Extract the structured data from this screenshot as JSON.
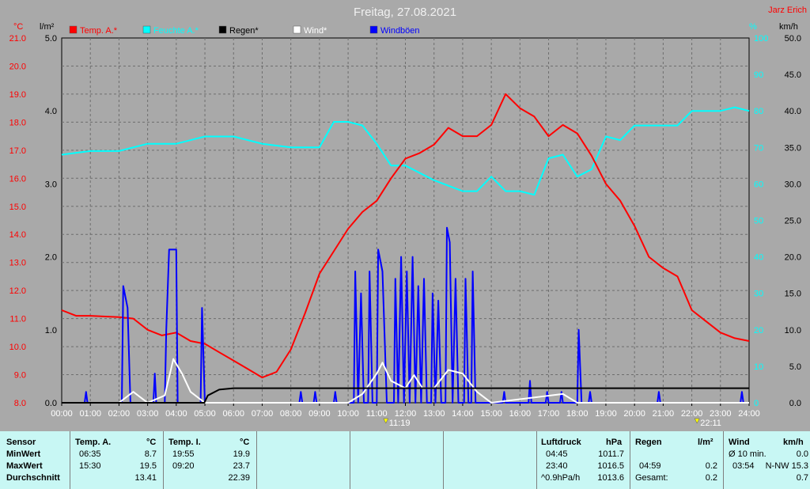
{
  "title": "Freitag, 27.08.2021",
  "author": "Jarz Erich",
  "axes": {
    "left_temp": {
      "unit": "°C",
      "ticks": [
        "21.0",
        "20.0",
        "19.0",
        "18.0",
        "17.0",
        "16.0",
        "15.0",
        "14.0",
        "13.0",
        "12.0",
        "11.0",
        "10.0",
        "9.0",
        "8.0"
      ],
      "range": [
        8,
        21
      ]
    },
    "left_rain": {
      "unit": "l/m²",
      "ticks": [
        "5.0",
        "4.0",
        "3.0",
        "2.0",
        "1.0",
        "0.0"
      ],
      "range": [
        0,
        5
      ]
    },
    "right_humidity": {
      "unit": "%",
      "ticks": [
        "100",
        "90",
        "80",
        "70",
        "60",
        "50",
        "40",
        "30",
        "20",
        "10",
        "0"
      ],
      "range": [
        0,
        100
      ]
    },
    "right_wind": {
      "unit": "km/h",
      "ticks": [
        "50.0",
        "45.0",
        "40.0",
        "35.0",
        "30.0",
        "25.0",
        "20.0",
        "15.0",
        "10.0",
        "5.0",
        "0.0"
      ],
      "range": [
        0,
        50
      ]
    },
    "x_ticks": [
      "00:00",
      "01:00",
      "02:00",
      "03:00",
      "04:00",
      "05:00",
      "06:00",
      "07:00",
      "08:00",
      "09:00",
      "10:00",
      "11:00",
      "12:00",
      "13:00",
      "14:00",
      "15:00",
      "16:00",
      "17:00",
      "18:00",
      "19:00",
      "20:00",
      "21:00",
      "22:00",
      "23:00",
      "24:00"
    ]
  },
  "legend": [
    {
      "label": "Temp. A.*",
      "color": "#ff0000"
    },
    {
      "label": "Feuchte A.*",
      "color": "#00ffff"
    },
    {
      "label": "Regen*",
      "color": "#000000"
    },
    {
      "label": "Wind*",
      "color": "#ffffff"
    },
    {
      "label": "Windböen",
      "color": "#0000ff"
    }
  ],
  "markers": [
    {
      "label": "11:19",
      "hour": 11.317
    },
    {
      "label": "22:11",
      "hour": 22.183
    }
  ],
  "chart_data": {
    "type": "line",
    "x_unit": "hour",
    "series": [
      {
        "name": "Temp. A.*",
        "axis": "left_temp",
        "color": "#ff0000",
        "points": [
          [
            0,
            11.3
          ],
          [
            0.5,
            11.1
          ],
          [
            1,
            11.1
          ],
          [
            2,
            11.05
          ],
          [
            2.5,
            11.0
          ],
          [
            3,
            10.6
          ],
          [
            3.5,
            10.4
          ],
          [
            4,
            10.5
          ],
          [
            4.5,
            10.2
          ],
          [
            5,
            10.1
          ],
          [
            5.5,
            9.8
          ],
          [
            6,
            9.5
          ],
          [
            6.5,
            9.2
          ],
          [
            7,
            8.9
          ],
          [
            7.5,
            9.1
          ],
          [
            8,
            9.9
          ],
          [
            8.5,
            11.2
          ],
          [
            9,
            12.6
          ],
          [
            9.5,
            13.4
          ],
          [
            10,
            14.2
          ],
          [
            10.5,
            14.8
          ],
          [
            11,
            15.2
          ],
          [
            11.5,
            16.0
          ],
          [
            12,
            16.7
          ],
          [
            12.5,
            16.9
          ],
          [
            13,
            17.2
          ],
          [
            13.5,
            17.8
          ],
          [
            14,
            17.5
          ],
          [
            14.5,
            17.5
          ],
          [
            15,
            17.9
          ],
          [
            15.5,
            19.0
          ],
          [
            16,
            18.5
          ],
          [
            16.5,
            18.2
          ],
          [
            17,
            17.5
          ],
          [
            17.5,
            17.9
          ],
          [
            18,
            17.6
          ],
          [
            18.5,
            16.8
          ],
          [
            19,
            15.8
          ],
          [
            19.5,
            15.2
          ],
          [
            20,
            14.3
          ],
          [
            20.5,
            13.2
          ],
          [
            21,
            12.8
          ],
          [
            21.5,
            12.5
          ],
          [
            22,
            11.3
          ],
          [
            22.5,
            10.9
          ],
          [
            23,
            10.5
          ],
          [
            23.5,
            10.3
          ],
          [
            24,
            10.2
          ]
        ]
      },
      {
        "name": "Feuchte A.*",
        "axis": "right_humidity",
        "color": "#00ffff",
        "points": [
          [
            0,
            68
          ],
          [
            1,
            69
          ],
          [
            2,
            69
          ],
          [
            3,
            71
          ],
          [
            4,
            71
          ],
          [
            5,
            73
          ],
          [
            6,
            73
          ],
          [
            7,
            71
          ],
          [
            8,
            70
          ],
          [
            9,
            70
          ],
          [
            9.5,
            77
          ],
          [
            10,
            77
          ],
          [
            10.5,
            76
          ],
          [
            11,
            71
          ],
          [
            11.5,
            65
          ],
          [
            12,
            65
          ],
          [
            13,
            61
          ],
          [
            14,
            58
          ],
          [
            14.5,
            58
          ],
          [
            15,
            62
          ],
          [
            15.5,
            58
          ],
          [
            16,
            58
          ],
          [
            16.5,
            57
          ],
          [
            17,
            67
          ],
          [
            17.5,
            68
          ],
          [
            18,
            62
          ],
          [
            18.5,
            64
          ],
          [
            19,
            73
          ],
          [
            19.5,
            72
          ],
          [
            20,
            76
          ],
          [
            21,
            76
          ],
          [
            21.5,
            76
          ],
          [
            22,
            80
          ],
          [
            23,
            80
          ],
          [
            23.5,
            81
          ],
          [
            24,
            80
          ]
        ]
      },
      {
        "name": "Regen*",
        "axis": "left_rain",
        "color": "#000000",
        "points": [
          [
            0,
            0
          ],
          [
            4.98,
            0
          ],
          [
            5.1,
            0.1
          ],
          [
            5.5,
            0.18
          ],
          [
            6,
            0.2
          ],
          [
            24,
            0.2
          ]
        ]
      },
      {
        "name": "Wind*",
        "axis": "right_wind",
        "color": "#ffffff",
        "points": [
          [
            0,
            0
          ],
          [
            2,
            0
          ],
          [
            2.5,
            1.5
          ],
          [
            3,
            0
          ],
          [
            3.6,
            1
          ],
          [
            3.9,
            6
          ],
          [
            4.2,
            4
          ],
          [
            4.5,
            1.5
          ],
          [
            5,
            0
          ],
          [
            10,
            0
          ],
          [
            10.5,
            1.2
          ],
          [
            11,
            4
          ],
          [
            11.2,
            5.5
          ],
          [
            11.5,
            3
          ],
          [
            12,
            2
          ],
          [
            12.3,
            3.8
          ],
          [
            12.6,
            2
          ],
          [
            13,
            2
          ],
          [
            13.5,
            4.5
          ],
          [
            14,
            4
          ],
          [
            14.5,
            1.5
          ],
          [
            15,
            0
          ],
          [
            17.5,
            1.2
          ],
          [
            18,
            0
          ],
          [
            24,
            0
          ]
        ]
      },
      {
        "name": "Windböen",
        "axis": "right_wind",
        "color": "#0000ff",
        "points": [
          [
            0,
            0
          ],
          [
            0.8,
            0
          ],
          [
            0.85,
            1.5
          ],
          [
            0.9,
            0
          ],
          [
            2.1,
            0
          ],
          [
            2.15,
            16
          ],
          [
            2.3,
            13
          ],
          [
            2.4,
            0
          ],
          [
            3.2,
            0
          ],
          [
            3.25,
            4
          ],
          [
            3.3,
            0
          ],
          [
            3.6,
            0
          ],
          [
            3.65,
            10
          ],
          [
            3.75,
            21
          ],
          [
            4.0,
            21
          ],
          [
            4.05,
            0
          ],
          [
            4.85,
            0
          ],
          [
            4.9,
            13
          ],
          [
            5.0,
            0
          ],
          [
            8.3,
            0
          ],
          [
            8.35,
            1.5
          ],
          [
            8.4,
            0
          ],
          [
            8.8,
            0
          ],
          [
            8.85,
            1.5
          ],
          [
            8.9,
            0
          ],
          [
            9.5,
            0
          ],
          [
            9.55,
            1.5
          ],
          [
            9.6,
            0
          ],
          [
            10.2,
            0
          ],
          [
            10.25,
            18
          ],
          [
            10.35,
            0
          ],
          [
            10.45,
            15
          ],
          [
            10.55,
            0
          ],
          [
            10.7,
            0
          ],
          [
            10.75,
            18
          ],
          [
            10.85,
            0
          ],
          [
            11.0,
            0
          ],
          [
            11.05,
            21
          ],
          [
            11.2,
            18
          ],
          [
            11.35,
            0
          ],
          [
            11.6,
            0
          ],
          [
            11.65,
            17
          ],
          [
            11.75,
            0
          ],
          [
            11.85,
            20
          ],
          [
            11.95,
            0
          ],
          [
            12.05,
            18
          ],
          [
            12.15,
            0
          ],
          [
            12.25,
            20
          ],
          [
            12.35,
            0
          ],
          [
            12.45,
            16
          ],
          [
            12.55,
            0
          ],
          [
            12.65,
            17
          ],
          [
            12.75,
            0
          ],
          [
            12.9,
            0
          ],
          [
            12.95,
            15
          ],
          [
            13.05,
            0
          ],
          [
            13.15,
            14
          ],
          [
            13.25,
            0
          ],
          [
            13.4,
            0
          ],
          [
            13.45,
            24
          ],
          [
            13.55,
            22
          ],
          [
            13.65,
            0
          ],
          [
            13.75,
            17
          ],
          [
            13.85,
            0
          ],
          [
            14.05,
            0
          ],
          [
            14.1,
            17
          ],
          [
            14.2,
            0
          ],
          [
            14.3,
            0
          ],
          [
            14.35,
            18
          ],
          [
            14.45,
            0
          ],
          [
            15.4,
            0
          ],
          [
            15.45,
            1.5
          ],
          [
            15.5,
            0
          ],
          [
            16.3,
            0
          ],
          [
            16.35,
            3
          ],
          [
            16.4,
            0
          ],
          [
            16.9,
            0
          ],
          [
            16.95,
            1.5
          ],
          [
            17.0,
            0
          ],
          [
            17.4,
            0
          ],
          [
            17.45,
            1.5
          ],
          [
            17.5,
            0
          ],
          [
            18.0,
            0
          ],
          [
            18.05,
            10
          ],
          [
            18.15,
            0
          ],
          [
            18.4,
            0
          ],
          [
            18.45,
            1.5
          ],
          [
            18.5,
            0
          ],
          [
            20.8,
            0
          ],
          [
            20.85,
            1.5
          ],
          [
            20.9,
            0
          ],
          [
            23.7,
            0
          ],
          [
            23.75,
            1.5
          ],
          [
            23.8,
            0
          ],
          [
            24,
            0
          ]
        ]
      }
    ]
  },
  "stats": {
    "sensor": {
      "header": "Sensor",
      "rows": [
        "MinWert",
        "MaxWert",
        "Durchschnitt"
      ]
    },
    "temp_a": {
      "header": "Temp. A.",
      "unit": "°C",
      "min_time": "06:35",
      "min_val": "8.7",
      "max_time": "15:30",
      "max_val": "19.5",
      "avg": "13.41"
    },
    "temp_i": {
      "header": "Temp. I.",
      "unit": "°C",
      "min_time": "19:55",
      "min_val": "19.9",
      "max_time": "09:20",
      "max_val": "23.7",
      "avg": "22.39"
    },
    "pressure": {
      "header": "Luftdruck",
      "unit": "hPa",
      "min_time": "04:45",
      "min_val": "1011.7",
      "max_time": "23:40",
      "max_val": "1016.5",
      "trend": "^0.9hPa/h",
      "current": "1013.6"
    },
    "rain": {
      "header": "Regen",
      "unit": "l/m²",
      "max_time": "04:59",
      "max_val": "0.2",
      "total_label": "Gesamt:",
      "total": "0.2"
    },
    "wind": {
      "header": "Wind",
      "unit": "km/h",
      "avg_label": "Ø 10 min.",
      "avg_val": "0.0",
      "max_time": "03:54",
      "max_val": "N-NW 15.3",
      "last": "0.7"
    }
  }
}
